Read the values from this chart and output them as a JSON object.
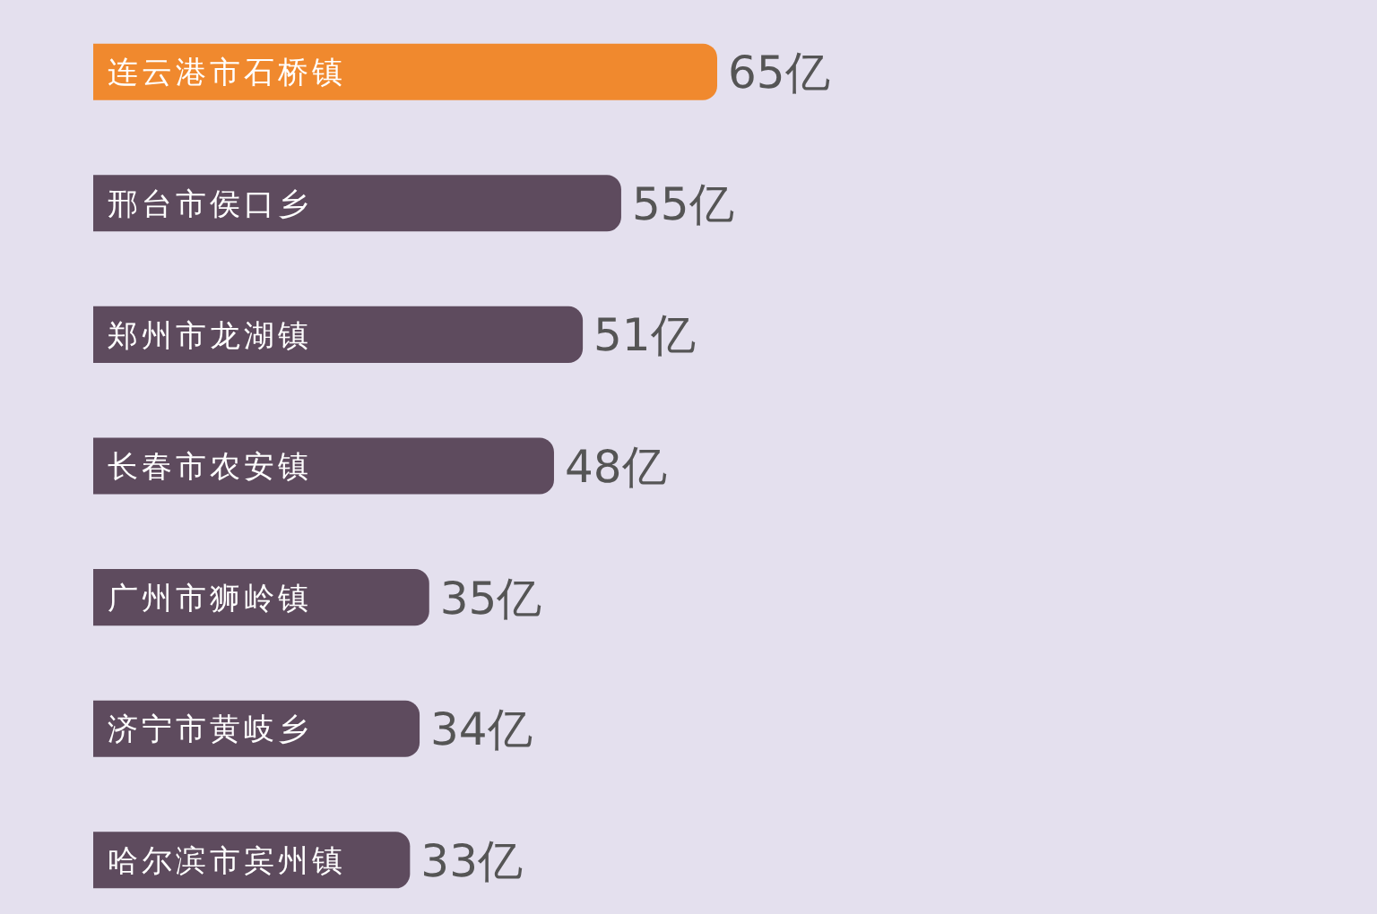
{
  "chart_data": {
    "type": "bar",
    "orientation": "horizontal",
    "categories": [
      "连云港市石桥镇",
      "邢台市侯口乡",
      "郑州市龙湖镇",
      "长春市农安镇",
      "广州市狮岭镇",
      "济宁市黄岐乡",
      "哈尔滨市宾州镇"
    ],
    "values": [
      65,
      55,
      51,
      48,
      35,
      34,
      33
    ],
    "colors": [
      "#f0892e",
      "#5e4b5e",
      "#5e4b5e",
      "#5e4b5e",
      "#5e4b5e",
      "#5e4b5e",
      "#5e4b5e"
    ],
    "value_labels": [
      "65亿",
      "55亿",
      "51亿",
      "48亿",
      "35亿",
      "34亿",
      "33亿"
    ]
  }
}
